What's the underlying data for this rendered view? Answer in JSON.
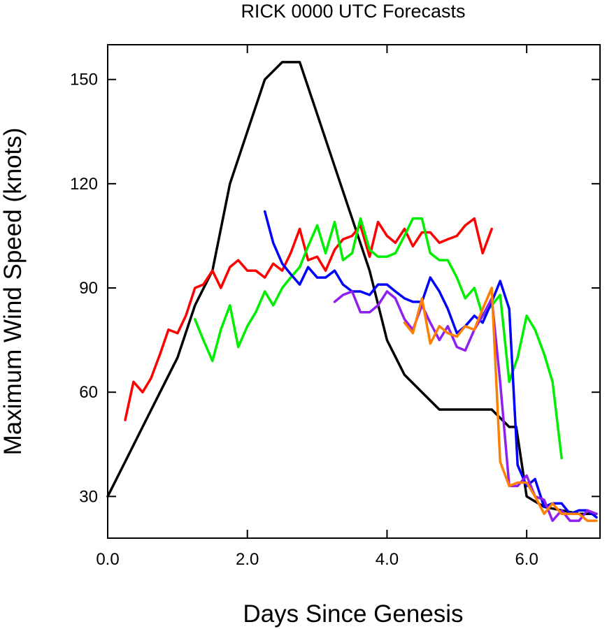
{
  "chart_data": {
    "type": "line",
    "title": "RICK 0000 UTC Forecasts",
    "xlabel": "Days Since Genesis",
    "ylabel": "Maximum Wind Speed (knots)",
    "xlim": [
      0,
      7.05
    ],
    "ylim": [
      18,
      160
    ],
    "xticks": [
      0,
      2,
      4,
      6
    ],
    "xtick_labels": [
      "0.0",
      "2.0",
      "4.0",
      "6.0"
    ],
    "yticks": [
      30,
      60,
      90,
      120,
      150
    ],
    "ytick_labels": [
      "30",
      "60",
      "90",
      "120",
      "150"
    ],
    "grid": false,
    "legend": "none",
    "series": [
      {
        "color": "#000000",
        "x": [
          0.0,
          0.25,
          0.5,
          0.75,
          1.0,
          1.25,
          1.5,
          1.75,
          2.0,
          2.25,
          2.5,
          2.75,
          3.0,
          3.25,
          3.5,
          3.75,
          4.0,
          4.25,
          4.5,
          4.75,
          5.0,
          5.25,
          5.5,
          5.75,
          5.85,
          6.0,
          6.25,
          6.5,
          6.75,
          7.0
        ],
        "y": [
          30,
          40,
          50,
          60,
          70,
          85,
          95,
          120,
          135,
          150,
          155,
          155,
          140,
          125,
          110,
          95,
          75,
          65,
          60,
          55,
          55,
          55,
          55,
          50,
          50,
          30,
          27,
          26,
          25,
          25
        ]
      },
      {
        "color": "#ff0000",
        "x": [
          0.25,
          0.37,
          0.5,
          0.62,
          0.75,
          0.87,
          1.0,
          1.12,
          1.25,
          1.37,
          1.5,
          1.62,
          1.75,
          1.87,
          2.0,
          2.12,
          2.25,
          2.37,
          2.5,
          2.62,
          2.75,
          2.87,
          3.0,
          3.12,
          3.25,
          3.37,
          3.5,
          3.62,
          3.75,
          3.87,
          4.0,
          4.12,
          4.25,
          4.37,
          4.5,
          4.62,
          4.75,
          4.87,
          5.0,
          5.12,
          5.25,
          5.37,
          5.5
        ],
        "y": [
          52,
          63,
          60,
          64,
          71,
          78,
          77,
          82,
          90,
          91,
          95,
          90,
          96,
          98,
          95,
          95,
          93,
          97,
          95,
          100,
          107,
          98,
          99,
          95,
          101,
          104,
          105,
          108,
          99,
          109,
          105,
          103,
          107,
          102,
          106,
          106,
          103,
          104,
          105,
          108,
          110,
          100,
          107
        ]
      },
      {
        "color": "#00ee00",
        "x": [
          1.25,
          1.37,
          1.5,
          1.62,
          1.75,
          1.87,
          2.0,
          2.12,
          2.25,
          2.37,
          2.5,
          2.62,
          2.75,
          2.87,
          3.0,
          3.12,
          3.25,
          3.37,
          3.5,
          3.62,
          3.75,
          3.87,
          4.0,
          4.12,
          4.25,
          4.37,
          4.5,
          4.62,
          4.75,
          4.87,
          5.0,
          5.12,
          5.25,
          5.37,
          5.5,
          5.62,
          5.75,
          5.87,
          6.0,
          6.12,
          6.25,
          6.37,
          6.5
        ],
        "y": [
          81,
          75,
          69,
          78,
          85,
          73,
          79,
          83,
          89,
          85,
          90,
          93,
          96,
          102,
          108,
          100,
          109,
          98,
          100,
          110,
          101,
          99,
          99,
          100,
          105,
          110,
          110,
          100,
          98,
          98,
          93,
          87,
          90,
          82,
          85,
          88,
          63,
          70,
          82,
          78,
          71,
          63,
          41
        ]
      },
      {
        "color": "#0000ff",
        "x": [
          2.25,
          2.37,
          2.5,
          2.62,
          2.75,
          2.87,
          3.0,
          3.12,
          3.25,
          3.37,
          3.5,
          3.62,
          3.75,
          3.87,
          4.0,
          4.12,
          4.25,
          4.37,
          4.5,
          4.62,
          4.75,
          4.87,
          5.0,
          5.12,
          5.25,
          5.37,
          5.5,
          5.62,
          5.75,
          5.87,
          6.0,
          6.12,
          6.25,
          6.37,
          6.5,
          6.62,
          6.75,
          6.87,
          7.0
        ],
        "y": [
          112,
          103,
          97,
          94,
          91,
          96,
          93,
          93,
          95,
          91,
          89,
          89,
          88,
          91,
          91,
          89,
          87,
          86,
          86,
          93,
          89,
          84,
          77,
          79,
          82,
          80,
          86,
          92,
          84,
          39,
          33,
          35,
          27,
          28,
          28,
          25,
          26,
          26,
          24
        ]
      },
      {
        "color": "#8f20ef",
        "x": [
          3.25,
          3.37,
          3.5,
          3.62,
          3.75,
          3.87,
          4.0,
          4.12,
          4.25,
          4.37,
          4.5,
          4.62,
          4.75,
          4.87,
          5.0,
          5.12,
          5.25,
          5.37,
          5.5,
          5.62,
          5.75,
          5.87,
          6.0,
          6.12,
          6.25,
          6.37,
          6.5,
          6.62,
          6.75,
          6.87,
          7.0
        ],
        "y": [
          86,
          88,
          89,
          83,
          83,
          85,
          89,
          87,
          81,
          78,
          85,
          80,
          75,
          79,
          73,
          72,
          78,
          82,
          87,
          63,
          33,
          33,
          36,
          30,
          29,
          23,
          26,
          23,
          23,
          26,
          25
        ]
      },
      {
        "color": "#ff8000",
        "x": [
          4.25,
          4.37,
          4.5,
          4.62,
          4.75,
          4.87,
          5.0,
          5.12,
          5.25,
          5.37,
          5.5,
          5.62,
          5.75,
          5.87,
          6.0,
          6.12,
          6.25,
          6.37,
          6.5,
          6.62,
          6.75,
          6.87,
          7.0
        ],
        "y": [
          80,
          77,
          87,
          74,
          79,
          77,
          76,
          79,
          78,
          84,
          90,
          40,
          33,
          34,
          34,
          30,
          25,
          28,
          25,
          25,
          25,
          23,
          23
        ]
      }
    ]
  }
}
